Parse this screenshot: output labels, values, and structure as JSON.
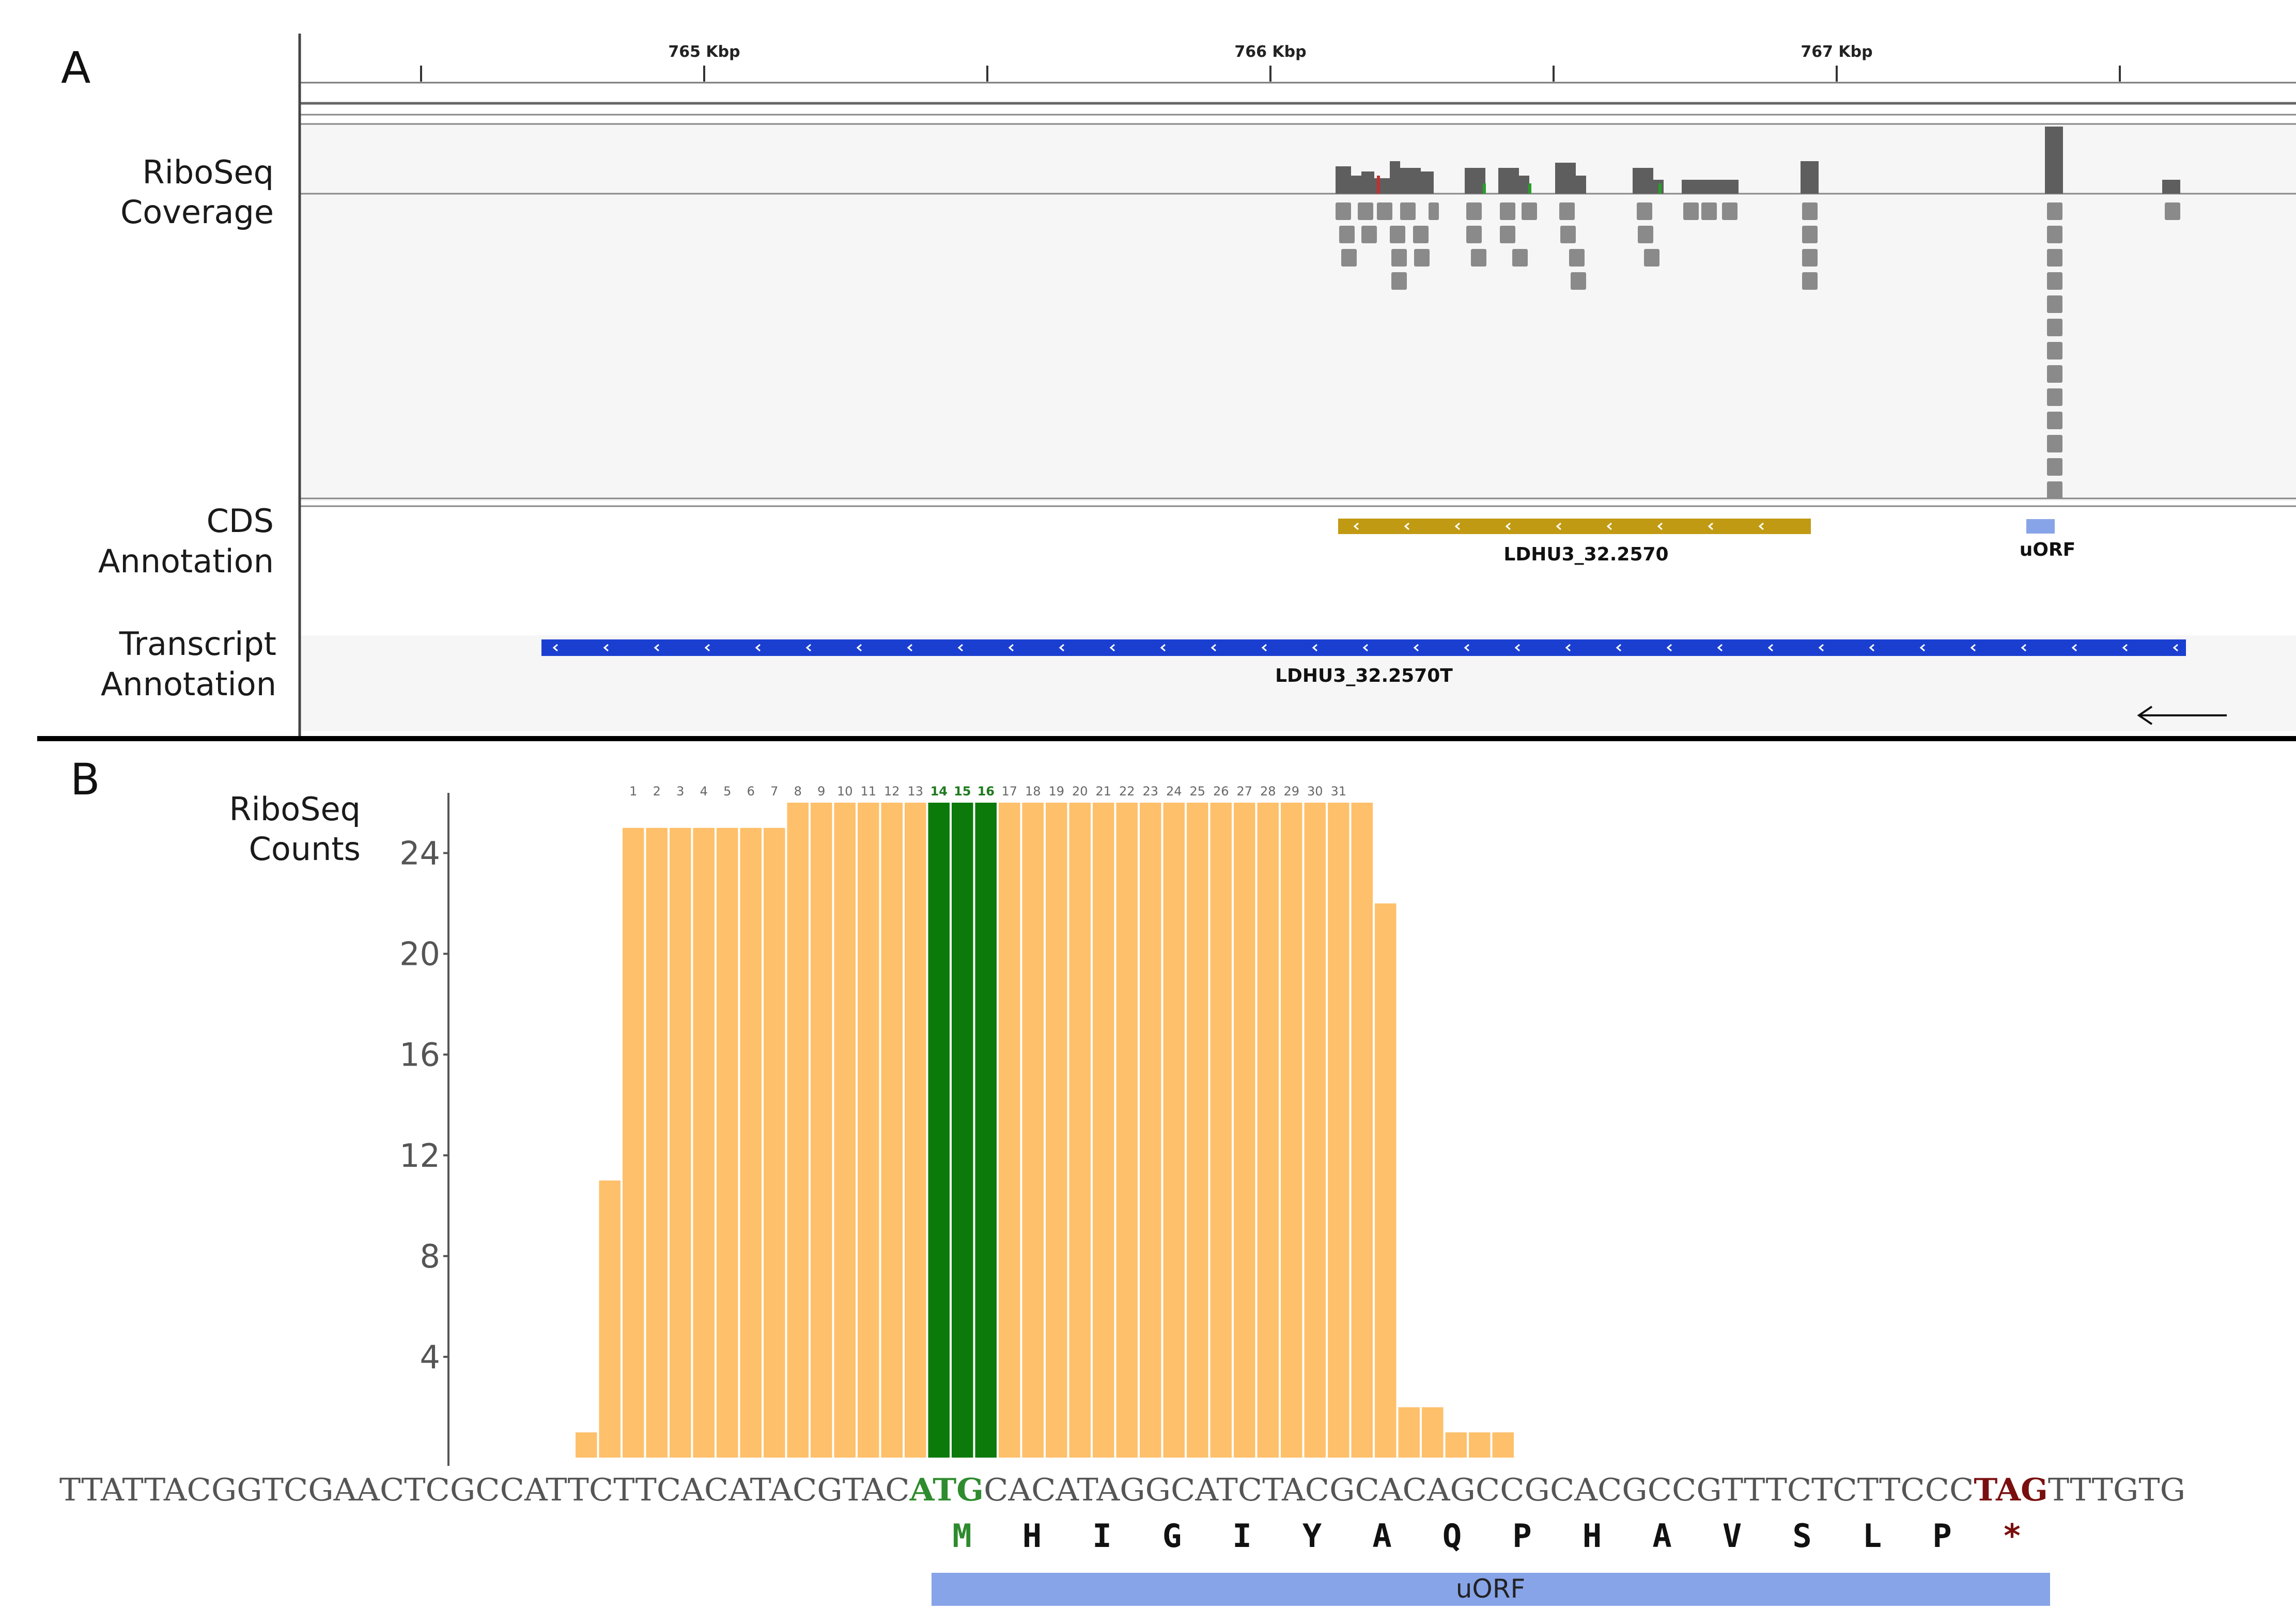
{
  "panel_a": {
    "letter": "A",
    "ruler": {
      "labels": [
        "765 Kbp",
        "766 Kbp",
        "767 Kbp"
      ]
    },
    "track_labels": {
      "coverage_line1": "RiboSeq",
      "coverage_line2": "Coverage",
      "cds_line1": "CDS",
      "cds_line2": "Annotation",
      "transcript_line1": "Transcript",
      "transcript_line2": "Annotation"
    },
    "features": {
      "cds_name": "LDHU3_32.2570",
      "uorf_name": "uORF",
      "transcript_name": "LDHU3_32.2570T"
    },
    "colors": {
      "cds": "#c19a14",
      "uorf": "#88a4e8",
      "transcript": "#1a3fd0",
      "reads": "#808080",
      "coverage": "#5e5e5e"
    }
  },
  "panel_b": {
    "letter": "B",
    "ylabel_line1": "RiboSeq",
    "ylabel_line2": "Counts",
    "sequence": {
      "before": "TTATTACGGTCGAACTCGCCATTCTTCACATACGTAC",
      "start_codon": "ATG",
      "middle": "CACATAGGCATCTACGCACAGCCGCACGCCGTTTCTCTTCCC",
      "stop_codon": "TAG",
      "after": "TTTGTG"
    },
    "amino_acids": [
      "M",
      "H",
      "I",
      "G",
      "I",
      "Y",
      "A",
      "Q",
      "P",
      "H",
      "A",
      "V",
      "S",
      "L",
      "P",
      "*"
    ],
    "uorf_label": "uORF",
    "colors": {
      "bar": "#fec06a",
      "highlight": "#0b7a0b",
      "start": "#2e8b2e",
      "stop": "#7a0f0f",
      "uorf": "#88a4e8"
    }
  },
  "chart_data": {
    "type": "bar",
    "ylabel": "RiboSeq Counts",
    "ylim": [
      0,
      26
    ],
    "yticks": [
      4,
      8,
      12,
      16,
      20,
      24
    ],
    "bar_numbers": [
      "1",
      "2",
      "3",
      "4",
      "5",
      "6",
      "7",
      "8",
      "9",
      "10",
      "11",
      "12",
      "13",
      "14",
      "15",
      "16",
      "17",
      "18",
      "19",
      "20",
      "21",
      "22",
      "23",
      "24",
      "25",
      "26",
      "27",
      "28",
      "29",
      "30",
      "31"
    ],
    "highlighted_numbers": [
      "14",
      "15",
      "16"
    ],
    "values": [
      1,
      11,
      25,
      25,
      25,
      25,
      25,
      25,
      25,
      26,
      26,
      26,
      26,
      26,
      26,
      26,
      26,
      26,
      26,
      26,
      26,
      26,
      26,
      26,
      26,
      26,
      26,
      26,
      26,
      26,
      26,
      26,
      26,
      26,
      22,
      2,
      2,
      1,
      1,
      1
    ],
    "highlight_indices": [
      15,
      16,
      17
    ],
    "grid": false
  }
}
